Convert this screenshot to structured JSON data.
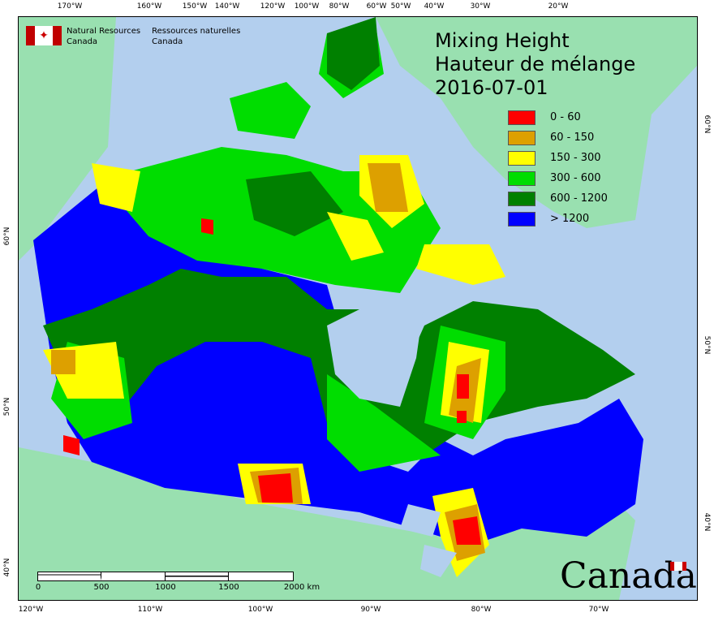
{
  "title": {
    "line1": "Mixing Height",
    "line2": "Hauteur de mélange",
    "date": "2016-07-01"
  },
  "legend": [
    {
      "label": "0 - 60",
      "color": "#ff0000"
    },
    {
      "label": "60 - 150",
      "color": "#dda000"
    },
    {
      "label": "150 - 300",
      "color": "#ffff00"
    },
    {
      "label": "300 - 600",
      "color": "#00dd00"
    },
    {
      "label": "600 - 1200",
      "color": "#008000"
    },
    {
      "label": "> 1200",
      "color": "#0000ff"
    }
  ],
  "agency": {
    "en1": "Natural Resources",
    "en2": "Canada",
    "fr1": "Ressources naturelles",
    "fr2": "Canada"
  },
  "wordmark": "Canada",
  "colors": {
    "ocean": "#b3cfee",
    "land": "#99e0b0"
  },
  "top_ticks": [
    "170°W",
    "160°W",
    "150°W",
    "140°W",
    "120°W",
    "100°W",
    "80°W",
    "60°W",
    "50°W",
    "40°W",
    "30°W",
    "20°W"
  ],
  "bottom_ticks": [
    "120°W",
    "110°W",
    "100°W",
    "90°W",
    "80°W",
    "70°W"
  ],
  "left_ticks": [
    "60°N",
    "50°N",
    "40°N"
  ],
  "right_ticks": [
    "60°N",
    "50°N",
    "40°N"
  ],
  "scale_bar": {
    "labels": [
      "0",
      "500",
      "1000",
      "1500",
      "2000 km"
    ]
  }
}
